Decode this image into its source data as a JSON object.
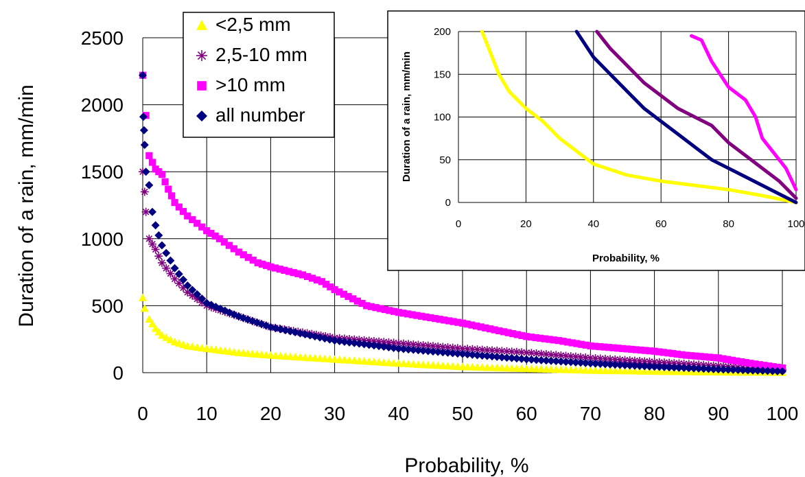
{
  "chart_data": [
    {
      "type": "scatter",
      "xlabel": "Probability, %",
      "ylabel": "Duration of a rain, mm/min",
      "xlim": [
        0,
        100
      ],
      "ylim": [
        0,
        2500
      ],
      "x_ticks": [
        "0",
        "10",
        "20",
        "30",
        "40",
        "50",
        "60",
        "70",
        "80",
        "90",
        "100"
      ],
      "y_ticks": [
        "0",
        "500",
        "1000",
        "1500",
        "2000",
        "2500"
      ],
      "grid": true,
      "legend": "top-left",
      "legend_items": [
        {
          "label": "<2,5 mm",
          "marker": "triangle",
          "color": "#ffff00"
        },
        {
          "label": "2,5-10 mm",
          "marker": "asterisk",
          "color": "#800080"
        },
        {
          "label": ">10 mm",
          "marker": "square",
          "color": "#ff00ff"
        },
        {
          "label": "all number",
          "marker": "diamond",
          "color": "#000080"
        }
      ],
      "series": [
        {
          "name": "<2,5 mm",
          "color": "#ffff00",
          "marker": "triangle",
          "points": [
            [
              0,
              560
            ],
            [
              0.3,
              480
            ],
            [
              1,
              400
            ],
            [
              2,
              330
            ],
            [
              3,
              280
            ],
            [
              5,
              230
            ],
            [
              7,
              200
            ],
            [
              10,
              180
            ],
            [
              15,
              150
            ],
            [
              20,
              130
            ],
            [
              30,
              100
            ],
            [
              40,
              70
            ],
            [
              50,
              45
            ],
            [
              60,
              30
            ],
            [
              70,
              18
            ],
            [
              80,
              10
            ],
            [
              90,
              5
            ],
            [
              100,
              2
            ]
          ]
        },
        {
          "name": "2,5-10 mm",
          "color": "#800080",
          "marker": "asterisk",
          "points": [
            [
              0,
              1500
            ],
            [
              0.3,
              1350
            ],
            [
              0.5,
              1200
            ],
            [
              1,
              1000
            ],
            [
              2,
              920
            ],
            [
              3,
              820
            ],
            [
              5,
              700
            ],
            [
              7,
              600
            ],
            [
              10,
              500
            ],
            [
              15,
              420
            ],
            [
              20,
              340
            ],
            [
              25,
              300
            ],
            [
              30,
              260
            ],
            [
              40,
              220
            ],
            [
              50,
              180
            ],
            [
              60,
              150
            ],
            [
              70,
              110
            ],
            [
              80,
              80
            ],
            [
              90,
              50
            ],
            [
              100,
              20
            ]
          ]
        },
        {
          "name": ">10 mm",
          "color": "#ff00ff",
          "marker": "square",
          "points": [
            [
              0,
              2220
            ],
            [
              0.5,
              1920
            ],
            [
              1,
              1620
            ],
            [
              2,
              1520
            ],
            [
              3,
              1480
            ],
            [
              4,
              1370
            ],
            [
              5,
              1270
            ],
            [
              7,
              1170
            ],
            [
              10,
              1060
            ],
            [
              12,
              1000
            ],
            [
              15,
              900
            ],
            [
              18,
              820
            ],
            [
              20,
              790
            ],
            [
              25,
              730
            ],
            [
              28,
              680
            ],
            [
              30,
              620
            ],
            [
              35,
              500
            ],
            [
              40,
              450
            ],
            [
              45,
              410
            ],
            [
              50,
              370
            ],
            [
              55,
              320
            ],
            [
              60,
              270
            ],
            [
              65,
              240
            ],
            [
              70,
              200
            ],
            [
              75,
              180
            ],
            [
              80,
              160
            ],
            [
              85,
              130
            ],
            [
              90,
              110
            ],
            [
              95,
              70
            ],
            [
              100,
              35
            ]
          ]
        },
        {
          "name": "all number",
          "color": "#000080",
          "marker": "diamond",
          "points": [
            [
              0,
              2220
            ],
            [
              0.1,
              1910
            ],
            [
              0.2,
              1810
            ],
            [
              0.3,
              1700
            ],
            [
              0.5,
              1500
            ],
            [
              1,
              1400
            ],
            [
              1.5,
              1200
            ],
            [
              2,
              1100
            ],
            [
              3,
              950
            ],
            [
              5,
              780
            ],
            [
              7,
              650
            ],
            [
              10,
              520
            ],
            [
              15,
              420
            ],
            [
              20,
              340
            ],
            [
              30,
              240
            ],
            [
              40,
              180
            ],
            [
              50,
              140
            ],
            [
              60,
              100
            ],
            [
              70,
              70
            ],
            [
              80,
              45
            ],
            [
              90,
              25
            ],
            [
              100,
              10
            ]
          ]
        }
      ]
    },
    {
      "type": "line",
      "xlabel": "Probability, %",
      "ylabel": "Duration of a rain, mm/min",
      "xlim": [
        0,
        100
      ],
      "ylim": [
        0,
        200
      ],
      "x_ticks": [
        "0",
        "20",
        "40",
        "60",
        "80",
        "100"
      ],
      "y_ticks": [
        "0",
        "50",
        "100",
        "150",
        "200"
      ],
      "grid": true,
      "series": [
        {
          "name": "<2,5 mm",
          "color": "#ffff00",
          "points": [
            [
              7,
              200
            ],
            [
              8,
              190
            ],
            [
              10,
              170
            ],
            [
              12,
              150
            ],
            [
              15,
              130
            ],
            [
              20,
              110
            ],
            [
              25,
              95
            ],
            [
              30,
              75
            ],
            [
              35,
              60
            ],
            [
              40,
              45
            ],
            [
              50,
              32
            ],
            [
              60,
              25
            ],
            [
              70,
              20
            ],
            [
              80,
              15
            ],
            [
              90,
              8
            ],
            [
              100,
              0
            ]
          ]
        },
        {
          "name": "2,5-10 mm",
          "color": "#800080",
          "points": [
            [
              41,
              200
            ],
            [
              45,
              180
            ],
            [
              50,
              160
            ],
            [
              55,
              140
            ],
            [
              60,
              125
            ],
            [
              65,
              110
            ],
            [
              70,
              100
            ],
            [
              75,
              90
            ],
            [
              80,
              70
            ],
            [
              85,
              55
            ],
            [
              90,
              40
            ],
            [
              95,
              25
            ],
            [
              100,
              5
            ]
          ]
        },
        {
          "name": ">10 mm",
          "color": "#ff00ff",
          "points": [
            [
              69,
              195
            ],
            [
              72,
              190
            ],
            [
              75,
              165
            ],
            [
              80,
              135
            ],
            [
              85,
              120
            ],
            [
              88,
              100
            ],
            [
              90,
              75
            ],
            [
              93,
              60
            ],
            [
              97,
              40
            ],
            [
              100,
              15
            ]
          ]
        },
        {
          "name": "all number",
          "color": "#000080",
          "points": [
            [
              35,
              200
            ],
            [
              40,
              170
            ],
            [
              45,
              150
            ],
            [
              50,
              130
            ],
            [
              55,
              110
            ],
            [
              60,
              95
            ],
            [
              65,
              80
            ],
            [
              70,
              65
            ],
            [
              75,
              50
            ],
            [
              80,
              40
            ],
            [
              85,
              30
            ],
            [
              90,
              20
            ],
            [
              95,
              10
            ],
            [
              100,
              0
            ]
          ]
        }
      ]
    }
  ]
}
